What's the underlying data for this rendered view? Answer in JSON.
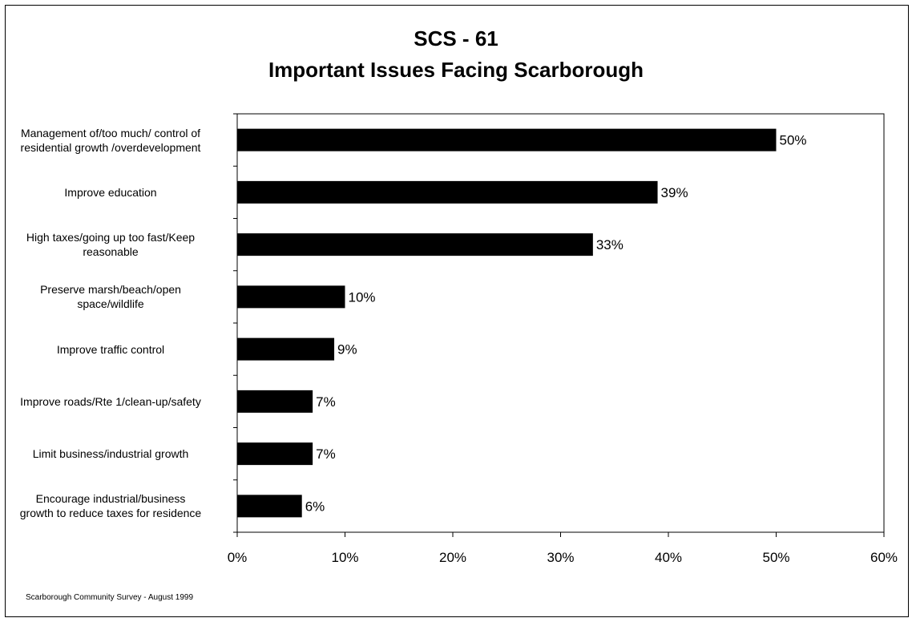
{
  "chart_data": {
    "type": "bar",
    "orientation": "horizontal",
    "title": [
      "SCS - 61",
      "Important Issues Facing Scarborough"
    ],
    "categories": [
      [
        "Management of/too much/ control of",
        "residential growth /overdevelopment"
      ],
      [
        "Improve education"
      ],
      [
        "High taxes/going up too fast/Keep",
        "reasonable"
      ],
      [
        "Preserve marsh/beach/open",
        "space/wildlife"
      ],
      [
        "Improve traffic control"
      ],
      [
        "Improve roads/Rte 1/clean-up/safety"
      ],
      [
        "Limit business/industrial growth"
      ],
      [
        "Encourage industrial/business",
        "growth to reduce taxes for residence"
      ]
    ],
    "values": [
      50,
      39,
      33,
      10,
      9,
      7,
      7,
      6
    ],
    "data_labels": [
      "50%",
      "39%",
      "33%",
      "10%",
      "9%",
      "7%",
      "7%",
      "6%"
    ],
    "xlim": [
      0,
      60
    ],
    "x_ticks": [
      "0%",
      "10%",
      "20%",
      "30%",
      "40%",
      "50%",
      "60%"
    ],
    "xlabel": "",
    "ylabel": "",
    "grid": false,
    "bar_color": "#000000"
  },
  "footer": {
    "source": "Scarborough Community Survey - August 1999"
  }
}
